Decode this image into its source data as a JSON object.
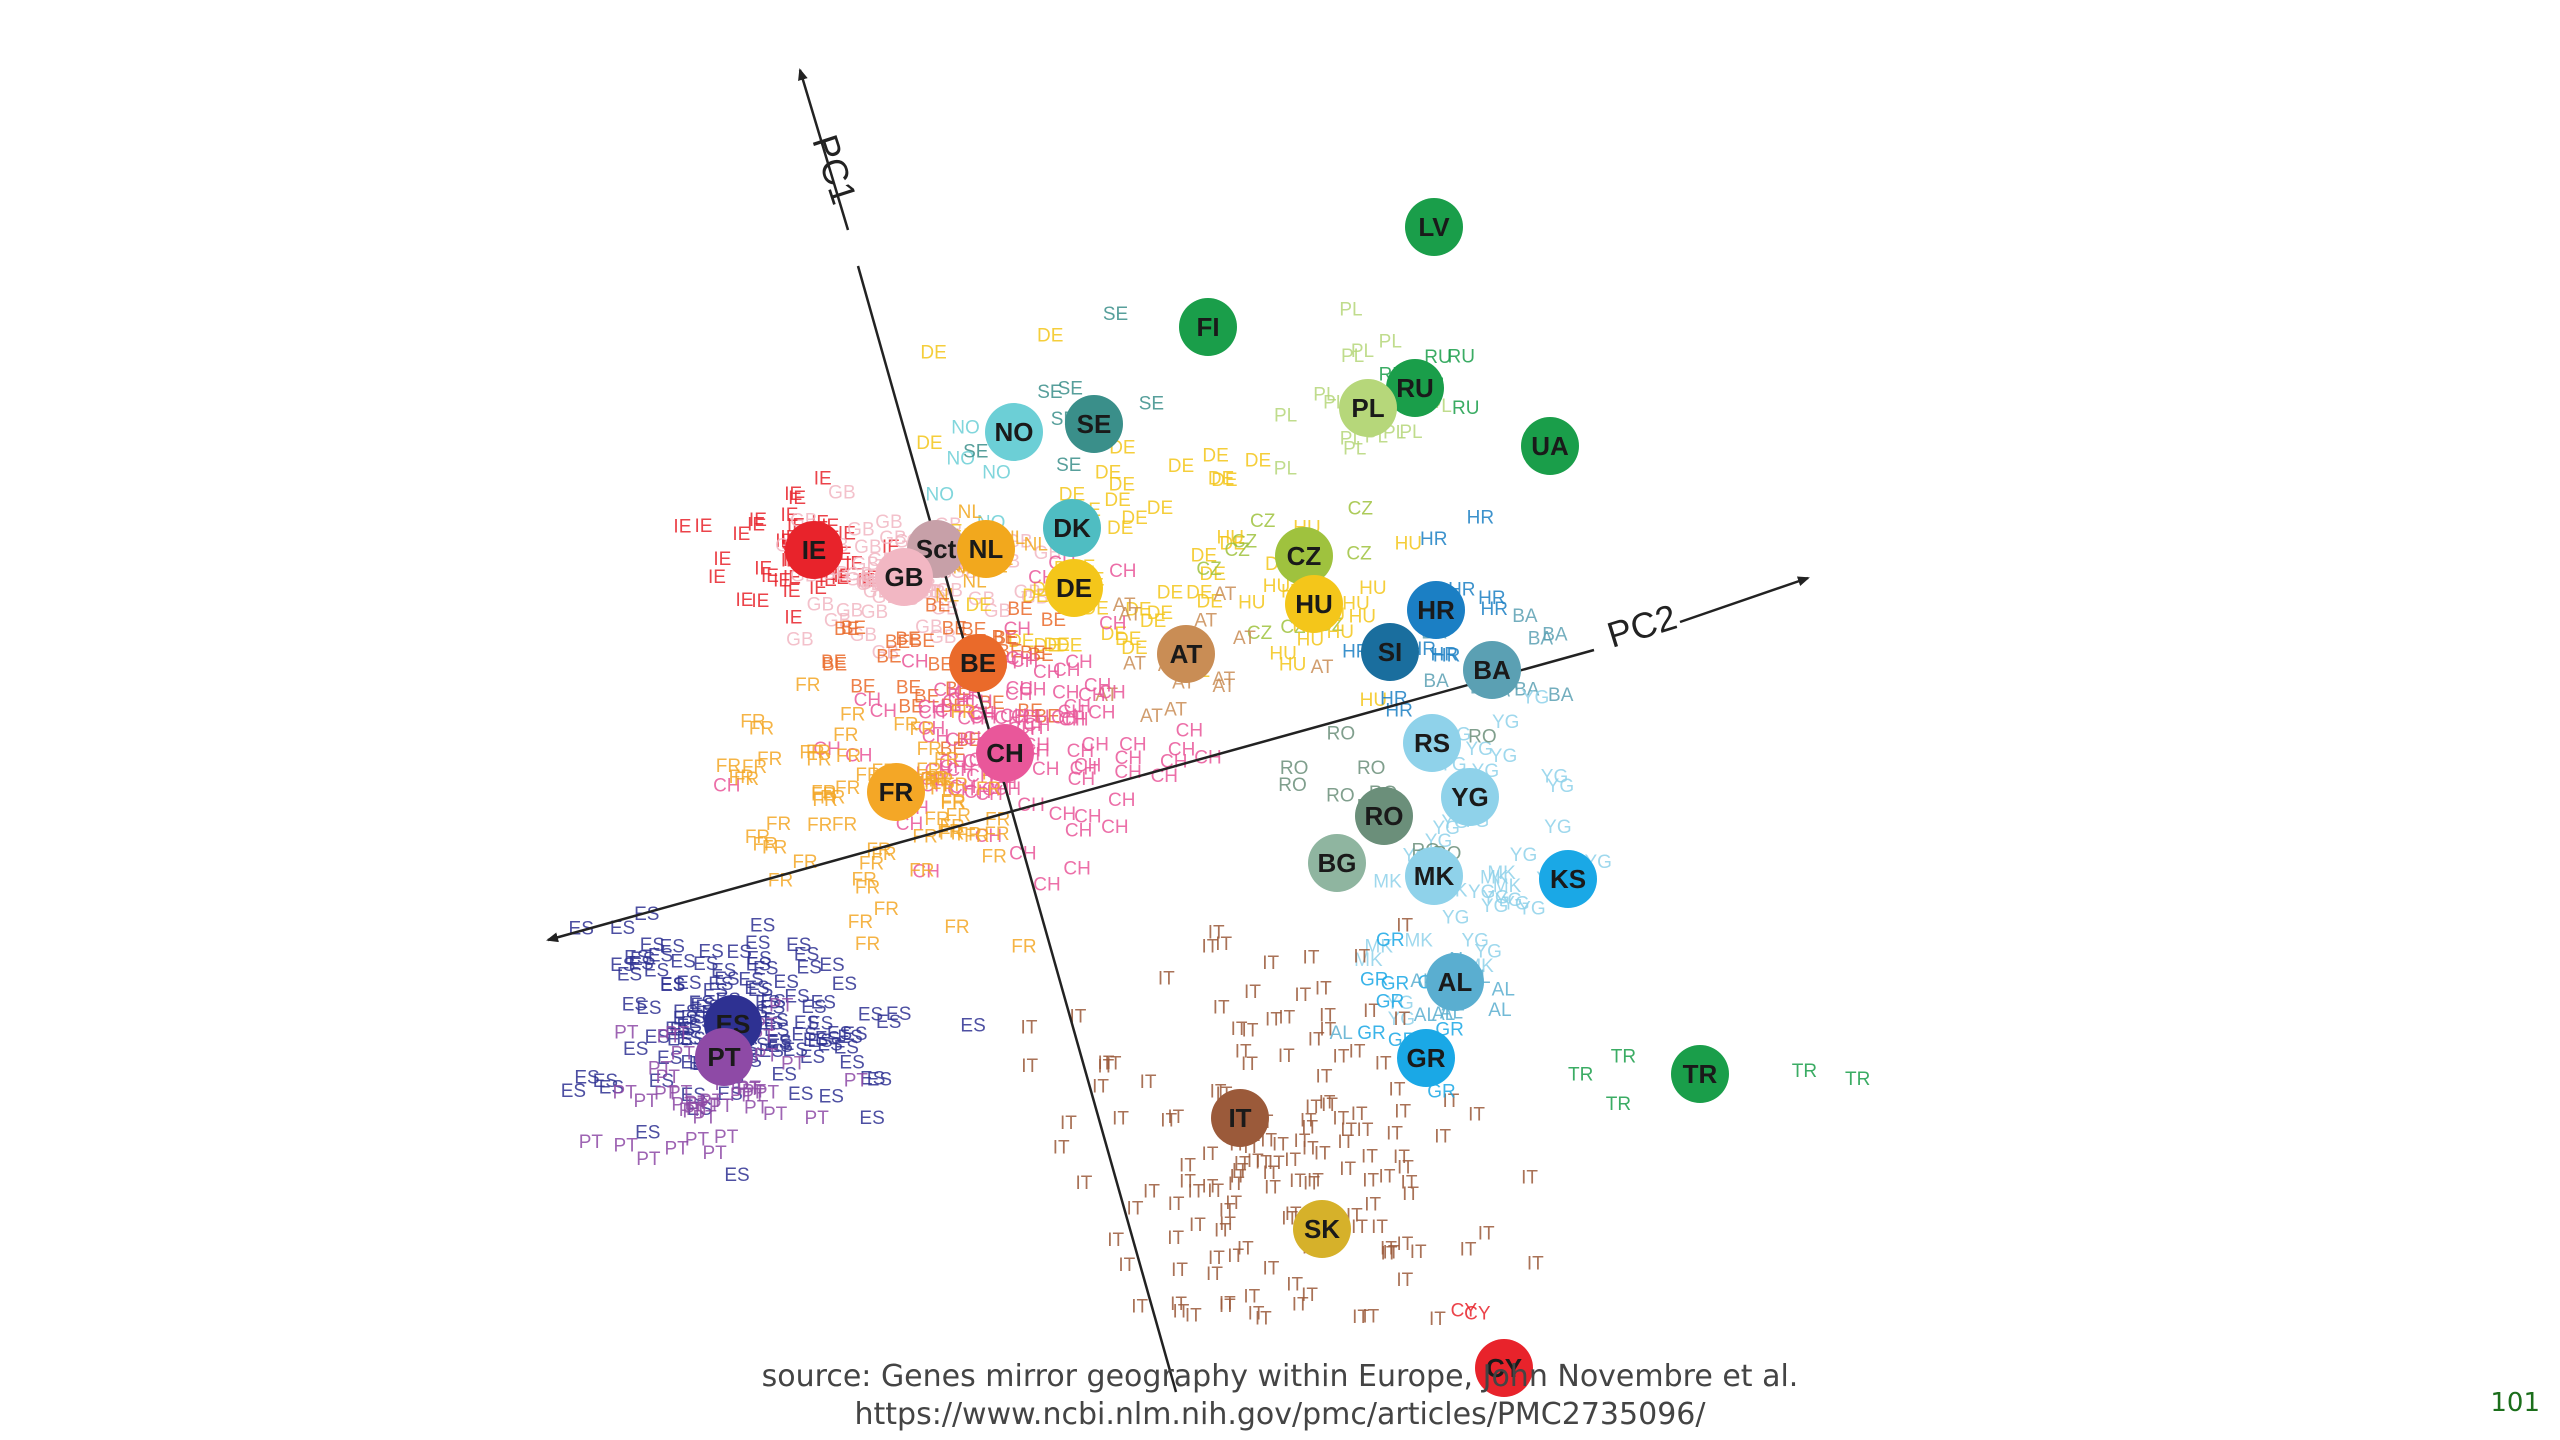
{
  "chart_data": {
    "type": "scatter",
    "title": "",
    "axes": [
      {
        "name": "PC1"
      },
      {
        "name": "PC2"
      }
    ],
    "centroids": [
      {
        "label": "LV",
        "color": "#1a9e4a",
        "pos": [
          1434,
          227
        ]
      },
      {
        "label": "FI",
        "color": "#1a9e4a",
        "pos": [
          1208,
          327
        ]
      },
      {
        "label": "RU",
        "color": "#1a9e4a",
        "pos": [
          1415,
          388
        ]
      },
      {
        "label": "UA",
        "color": "#1a9e4a",
        "pos": [
          1550,
          446
        ]
      },
      {
        "label": "PL",
        "color": "#b6d77a",
        "pos": [
          1368,
          408
        ]
      },
      {
        "label": "NO",
        "color": "#6ccfd6",
        "pos": [
          1014,
          432
        ]
      },
      {
        "label": "SE",
        "color": "#3a8f8a",
        "pos": [
          1094,
          424
        ]
      },
      {
        "label": "DK",
        "color": "#4fbdc2",
        "pos": [
          1072,
          528
        ]
      },
      {
        "label": "IE",
        "color": "#e8232b",
        "pos": [
          814,
          550
        ]
      },
      {
        "label": "Sct",
        "color": "#c7a0a8",
        "pos": [
          936,
          549
        ]
      },
      {
        "label": "GB",
        "color": "#f2b7c3",
        "pos": [
          904,
          577
        ]
      },
      {
        "label": "NL",
        "color": "#f2a81d",
        "pos": [
          986,
          549
        ]
      },
      {
        "label": "DE",
        "color": "#f4c61a",
        "pos": [
          1074,
          588
        ]
      },
      {
        "label": "CZ",
        "color": "#9fc23e",
        "pos": [
          1304,
          556
        ]
      },
      {
        "label": "HU",
        "color": "#f4c61a",
        "pos": [
          1314,
          604
        ]
      },
      {
        "label": "HR",
        "color": "#1b7fc4",
        "pos": [
          1436,
          610
        ]
      },
      {
        "label": "SI",
        "color": "#1a6e9e",
        "pos": [
          1390,
          652
        ]
      },
      {
        "label": "BA",
        "color": "#5ba0b3",
        "pos": [
          1492,
          670
        ]
      },
      {
        "label": "AT",
        "color": "#c98d55",
        "pos": [
          1186,
          654
        ]
      },
      {
        "label": "BE",
        "color": "#ea6a2a",
        "pos": [
          978,
          663
        ]
      },
      {
        "label": "CH",
        "color": "#e9579a",
        "pos": [
          1005,
          753
        ]
      },
      {
        "label": "FR",
        "color": "#f4a726",
        "pos": [
          896,
          792
        ]
      },
      {
        "label": "RS",
        "color": "#8fd2ea",
        "pos": [
          1432,
          743
        ]
      },
      {
        "label": "YG",
        "color": "#8fd2ea",
        "pos": [
          1470,
          797
        ]
      },
      {
        "label": "RO",
        "color": "#6b8f7a",
        "pos": [
          1384,
          816
        ]
      },
      {
        "label": "BG",
        "color": "#8fb5a0",
        "pos": [
          1337,
          863
        ]
      },
      {
        "label": "MK",
        "color": "#8fd2ea",
        "pos": [
          1434,
          876
        ]
      },
      {
        "label": "KS",
        "color": "#1aa8e6",
        "pos": [
          1568,
          879
        ]
      },
      {
        "label": "AL",
        "color": "#5aaed0",
        "pos": [
          1455,
          982
        ]
      },
      {
        "label": "GR",
        "color": "#1aa8e6",
        "pos": [
          1426,
          1058
        ]
      },
      {
        "label": "TR",
        "color": "#1a9e4a",
        "pos": [
          1700,
          1074
        ]
      },
      {
        "label": "ES",
        "color": "#2e3192",
        "pos": [
          733,
          1024
        ]
      },
      {
        "label": "PT",
        "color": "#8e4aa6",
        "pos": [
          724,
          1057
        ]
      },
      {
        "label": "IT",
        "color": "#9b5a3a",
        "pos": [
          1240,
          1118
        ]
      },
      {
        "label": "SK",
        "color": "#d6b12a",
        "pos": [
          1322,
          1229
        ]
      },
      {
        "label": "CY",
        "color": "#e8232b",
        "pos": [
          1504,
          1368
        ]
      }
    ],
    "sample_labels": [
      {
        "label": "IE",
        "color": "#e8232b"
      },
      {
        "label": "GB",
        "color": "#f2b7c3"
      },
      {
        "label": "NO",
        "color": "#6ccfd6"
      },
      {
        "label": "SE",
        "color": "#3a8f8a"
      },
      {
        "label": "NL",
        "color": "#f2a81d"
      },
      {
        "label": "DE",
        "color": "#f4c61a"
      },
      {
        "label": "PL",
        "color": "#b6d77a"
      },
      {
        "label": "RU",
        "color": "#1a9e4a"
      },
      {
        "label": "CZ",
        "color": "#9fc23e"
      },
      {
        "label": "HU",
        "color": "#f4c61a"
      },
      {
        "label": "AT",
        "color": "#c98d55"
      },
      {
        "label": "HR",
        "color": "#1b7fc4"
      },
      {
        "label": "BA",
        "color": "#5ba0b3"
      },
      {
        "label": "YG",
        "color": "#8fd2ea"
      },
      {
        "label": "RO",
        "color": "#6b8f7a"
      },
      {
        "label": "MK",
        "color": "#8fd2ea"
      },
      {
        "label": "BE",
        "color": "#ea6a2a"
      },
      {
        "label": "CH",
        "color": "#e9579a"
      },
      {
        "label": "FR",
        "color": "#f4a726"
      },
      {
        "label": "ES",
        "color": "#2e3192"
      },
      {
        "label": "PT",
        "color": "#8e4aa6"
      },
      {
        "label": "IT",
        "color": "#9b5a3a"
      },
      {
        "label": "GR",
        "color": "#1aa8e6"
      },
      {
        "label": "TR",
        "color": "#1a9e4a"
      },
      {
        "label": "AL",
        "color": "#5aaed0"
      },
      {
        "label": "CY",
        "color": "#e8232b"
      }
    ]
  },
  "footer": {
    "source_line1": "source: Genes mirror geography within Europe, John Novembre et al.",
    "source_line2": "https://www.ncbi.nlm.nih.gov/pmc/articles/PMC2735096/",
    "page_number": "101"
  }
}
